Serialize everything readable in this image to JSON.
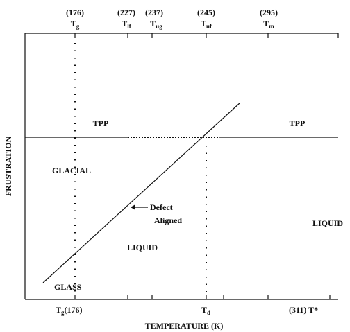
{
  "top_axis": {
    "ticks": [
      {
        "value": "(176)",
        "label": "T",
        "sub": "g"
      },
      {
        "value": "(227)",
        "label": "T",
        "sub": "lf"
      },
      {
        "value": "(237)",
        "label": "T",
        "sub": "ug"
      },
      {
        "value": "(245)",
        "label": "T",
        "sub": "uf"
      },
      {
        "value": "(295)",
        "label": "T",
        "sub": "m"
      }
    ]
  },
  "regions": {
    "tpp_left": "TPP",
    "tpp_right": "TPP",
    "glacial": "GLACIAL",
    "liquid_right": "LIQUID",
    "liquid_middle": "LIQUID",
    "glass": "GLASS"
  },
  "annotation": [
    "Defect",
    "Aligned"
  ],
  "bottom_axis": {
    "tg": {
      "label": "T",
      "sub": "g",
      "value": "(176)"
    },
    "td": {
      "label": "T",
      "sub": "d"
    },
    "tstar": "(311) T*"
  },
  "y_axis_label": "FRUSTRATION",
  "x_axis_label": "TEMPERATURE (K)"
}
